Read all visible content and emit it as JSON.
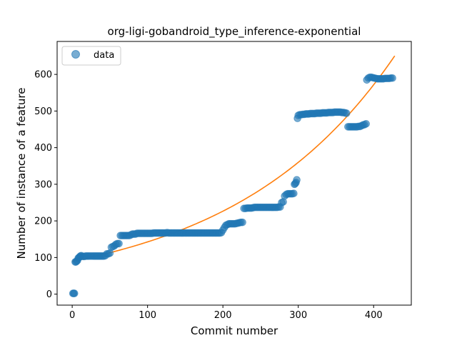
{
  "chart_data": {
    "type": "scatter",
    "title": "org-ligi-gobandroid_type_inference-exponential",
    "xlabel": "Commit number",
    "ylabel": "Number of instance of a feature",
    "xlim": [
      -20,
      450
    ],
    "ylim": [
      -30,
      690
    ],
    "xticks": [
      0,
      100,
      200,
      300,
      400
    ],
    "yticks": [
      0,
      100,
      200,
      300,
      400,
      500,
      600
    ],
    "grid": false,
    "legend": {
      "placement": "top-left",
      "entries": [
        "data"
      ]
    },
    "colors": {
      "data": "#1f77b4",
      "fit": "#ff7f0e"
    },
    "series": [
      {
        "name": "data",
        "kind": "scatter",
        "points": [
          [
            1,
            2
          ],
          [
            2,
            2
          ],
          [
            3,
            2
          ],
          [
            4,
            88
          ],
          [
            5,
            88
          ],
          [
            6,
            90
          ],
          [
            7,
            92
          ],
          [
            8,
            98
          ],
          [
            9,
            100
          ],
          [
            10,
            102
          ],
          [
            11,
            104
          ],
          [
            12,
            105
          ],
          [
            14,
            103
          ],
          [
            16,
            103
          ],
          [
            18,
            104
          ],
          [
            20,
            104
          ],
          [
            22,
            104
          ],
          [
            24,
            104
          ],
          [
            26,
            104
          ],
          [
            28,
            104
          ],
          [
            30,
            104
          ],
          [
            32,
            104
          ],
          [
            34,
            104
          ],
          [
            36,
            104
          ],
          [
            38,
            104
          ],
          [
            40,
            104
          ],
          [
            42,
            104
          ],
          [
            44,
            105
          ],
          [
            46,
            110
          ],
          [
            48,
            110
          ],
          [
            50,
            112
          ],
          [
            52,
            128
          ],
          [
            54,
            130
          ],
          [
            56,
            132
          ],
          [
            58,
            136
          ],
          [
            60,
            138
          ],
          [
            62,
            138
          ],
          [
            64,
            160
          ],
          [
            66,
            160
          ],
          [
            68,
            160
          ],
          [
            70,
            160
          ],
          [
            72,
            160
          ],
          [
            74,
            160
          ],
          [
            76,
            160
          ],
          [
            78,
            162
          ],
          [
            80,
            164
          ],
          [
            82,
            164
          ],
          [
            84,
            164
          ],
          [
            86,
            166
          ],
          [
            88,
            166
          ],
          [
            90,
            166
          ],
          [
            92,
            166
          ],
          [
            94,
            166
          ],
          [
            96,
            166
          ],
          [
            98,
            166
          ],
          [
            100,
            166
          ],
          [
            102,
            166
          ],
          [
            104,
            166
          ],
          [
            106,
            166
          ],
          [
            108,
            167
          ],
          [
            110,
            167
          ],
          [
            112,
            167
          ],
          [
            114,
            167
          ],
          [
            116,
            167
          ],
          [
            118,
            167
          ],
          [
            120,
            167
          ],
          [
            122,
            167
          ],
          [
            124,
            167
          ],
          [
            126,
            168
          ],
          [
            128,
            167
          ],
          [
            130,
            167
          ],
          [
            132,
            167
          ],
          [
            134,
            167
          ],
          [
            136,
            167
          ],
          [
            138,
            167
          ],
          [
            140,
            167
          ],
          [
            142,
            167
          ],
          [
            144,
            167
          ],
          [
            146,
            167
          ],
          [
            148,
            167
          ],
          [
            150,
            167
          ],
          [
            152,
            167
          ],
          [
            154,
            167
          ],
          [
            156,
            167
          ],
          [
            158,
            167
          ],
          [
            160,
            167
          ],
          [
            162,
            167
          ],
          [
            164,
            167
          ],
          [
            166,
            167
          ],
          [
            168,
            167
          ],
          [
            170,
            167
          ],
          [
            172,
            167
          ],
          [
            174,
            167
          ],
          [
            176,
            167
          ],
          [
            178,
            167
          ],
          [
            180,
            167
          ],
          [
            182,
            167
          ],
          [
            184,
            167
          ],
          [
            186,
            167
          ],
          [
            188,
            167
          ],
          [
            190,
            167
          ],
          [
            192,
            167
          ],
          [
            194,
            167
          ],
          [
            196,
            167
          ],
          [
            198,
            168
          ],
          [
            200,
            175
          ],
          [
            202,
            182
          ],
          [
            204,
            188
          ],
          [
            206,
            190
          ],
          [
            208,
            192
          ],
          [
            210,
            192
          ],
          [
            212,
            192
          ],
          [
            214,
            192
          ],
          [
            216,
            192
          ],
          [
            218,
            193
          ],
          [
            220,
            194
          ],
          [
            222,
            195
          ],
          [
            224,
            196
          ],
          [
            226,
            196
          ],
          [
            228,
            234
          ],
          [
            230,
            234
          ],
          [
            232,
            235
          ],
          [
            234,
            235
          ],
          [
            236,
            235
          ],
          [
            238,
            235
          ],
          [
            240,
            236
          ],
          [
            242,
            237
          ],
          [
            244,
            237
          ],
          [
            246,
            237
          ],
          [
            248,
            237
          ],
          [
            250,
            237
          ],
          [
            252,
            237
          ],
          [
            254,
            237
          ],
          [
            256,
            237
          ],
          [
            258,
            237
          ],
          [
            260,
            237
          ],
          [
            262,
            237
          ],
          [
            264,
            237
          ],
          [
            266,
            237
          ],
          [
            268,
            237
          ],
          [
            270,
            237
          ],
          [
            272,
            237
          ],
          [
            274,
            238
          ],
          [
            276,
            238
          ],
          [
            278,
            250
          ],
          [
            280,
            252
          ],
          [
            282,
            268
          ],
          [
            284,
            272
          ],
          [
            286,
            274
          ],
          [
            288,
            274
          ],
          [
            290,
            274
          ],
          [
            292,
            274
          ],
          [
            294,
            275
          ],
          [
            295,
            300
          ],
          [
            296,
            302
          ],
          [
            297,
            305
          ],
          [
            298,
            312
          ],
          [
            299,
            480
          ],
          [
            300,
            488
          ],
          [
            302,
            490
          ],
          [
            304,
            490
          ],
          [
            306,
            491
          ],
          [
            308,
            491
          ],
          [
            310,
            492
          ],
          [
            312,
            492
          ],
          [
            314,
            492
          ],
          [
            316,
            493
          ],
          [
            318,
            493
          ],
          [
            320,
            493
          ],
          [
            322,
            493
          ],
          [
            324,
            494
          ],
          [
            326,
            494
          ],
          [
            328,
            494
          ],
          [
            330,
            494
          ],
          [
            332,
            495
          ],
          [
            334,
            495
          ],
          [
            336,
            495
          ],
          [
            338,
            495
          ],
          [
            340,
            496
          ],
          [
            342,
            496
          ],
          [
            344,
            496
          ],
          [
            346,
            496
          ],
          [
            348,
            497
          ],
          [
            350,
            497
          ],
          [
            352,
            497
          ],
          [
            354,
            497
          ],
          [
            356,
            497
          ],
          [
            358,
            496
          ],
          [
            360,
            496
          ],
          [
            362,
            495
          ],
          [
            364,
            494
          ],
          [
            366,
            457
          ],
          [
            368,
            457
          ],
          [
            370,
            457
          ],
          [
            372,
            457
          ],
          [
            374,
            457
          ],
          [
            376,
            457
          ],
          [
            378,
            457
          ],
          [
            380,
            458
          ],
          [
            382,
            458
          ],
          [
            384,
            460
          ],
          [
            386,
            462
          ],
          [
            388,
            463
          ],
          [
            390,
            465
          ],
          [
            391,
            585
          ],
          [
            393,
            590
          ],
          [
            395,
            592
          ],
          [
            397,
            592
          ],
          [
            399,
            591
          ],
          [
            401,
            590
          ],
          [
            403,
            589
          ],
          [
            405,
            588
          ],
          [
            407,
            588
          ],
          [
            409,
            588
          ],
          [
            411,
            588
          ],
          [
            413,
            588
          ],
          [
            415,
            589
          ],
          [
            417,
            589
          ],
          [
            419,
            589
          ],
          [
            421,
            589
          ],
          [
            423,
            590
          ],
          [
            425,
            590
          ]
        ]
      },
      {
        "kind": "line",
        "model": "exponential",
        "a": 89.8,
        "b": 0.004627,
        "x_range": [
          0,
          428
        ]
      }
    ]
  }
}
